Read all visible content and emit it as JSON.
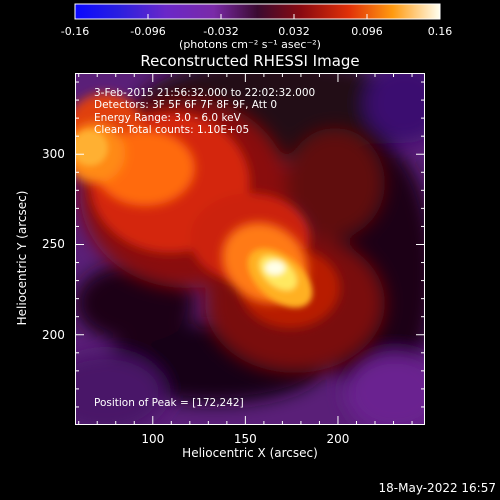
{
  "colorbar": {
    "ticks": [
      "-0.16",
      "-0.096",
      "-0.032",
      "0.032",
      "0.096",
      "0.16"
    ],
    "units": "(photons cm⁻² s⁻¹ asec⁻²)",
    "range": [
      -0.16,
      0.16
    ]
  },
  "annotations": {
    "time": "3-Feb-2015 21:56:32.000 to 22:02:32.000",
    "detectors": "Detectors: 3F 5F 6F 7F 8F 9F, Att 0",
    "energy": "Energy Range: 3.0 - 6.0 keV",
    "clean": "Clean     Total counts: 1.10E+05",
    "peak": "Position of Peak = [172,242]"
  },
  "date_stamp": "18-May-2022 16:57",
  "chart_data": {
    "type": "heatmap",
    "title": "Reconstructed RHESSI Image",
    "xlabel": "Heliocentric X (arcsec)",
    "ylabel": "Heliocentric Y (arcsec)",
    "xlim": [
      58,
      247
    ],
    "ylim": [
      150,
      345
    ],
    "xticks": [
      "100",
      "150",
      "200"
    ],
    "yticks": [
      "200",
      "250",
      "300"
    ],
    "value_range": [
      -0.16,
      0.16
    ],
    "peak": [
      172,
      242
    ],
    "peak_value": 0.16,
    "colormap": "rhessi-blue-purple-red-yellow"
  }
}
